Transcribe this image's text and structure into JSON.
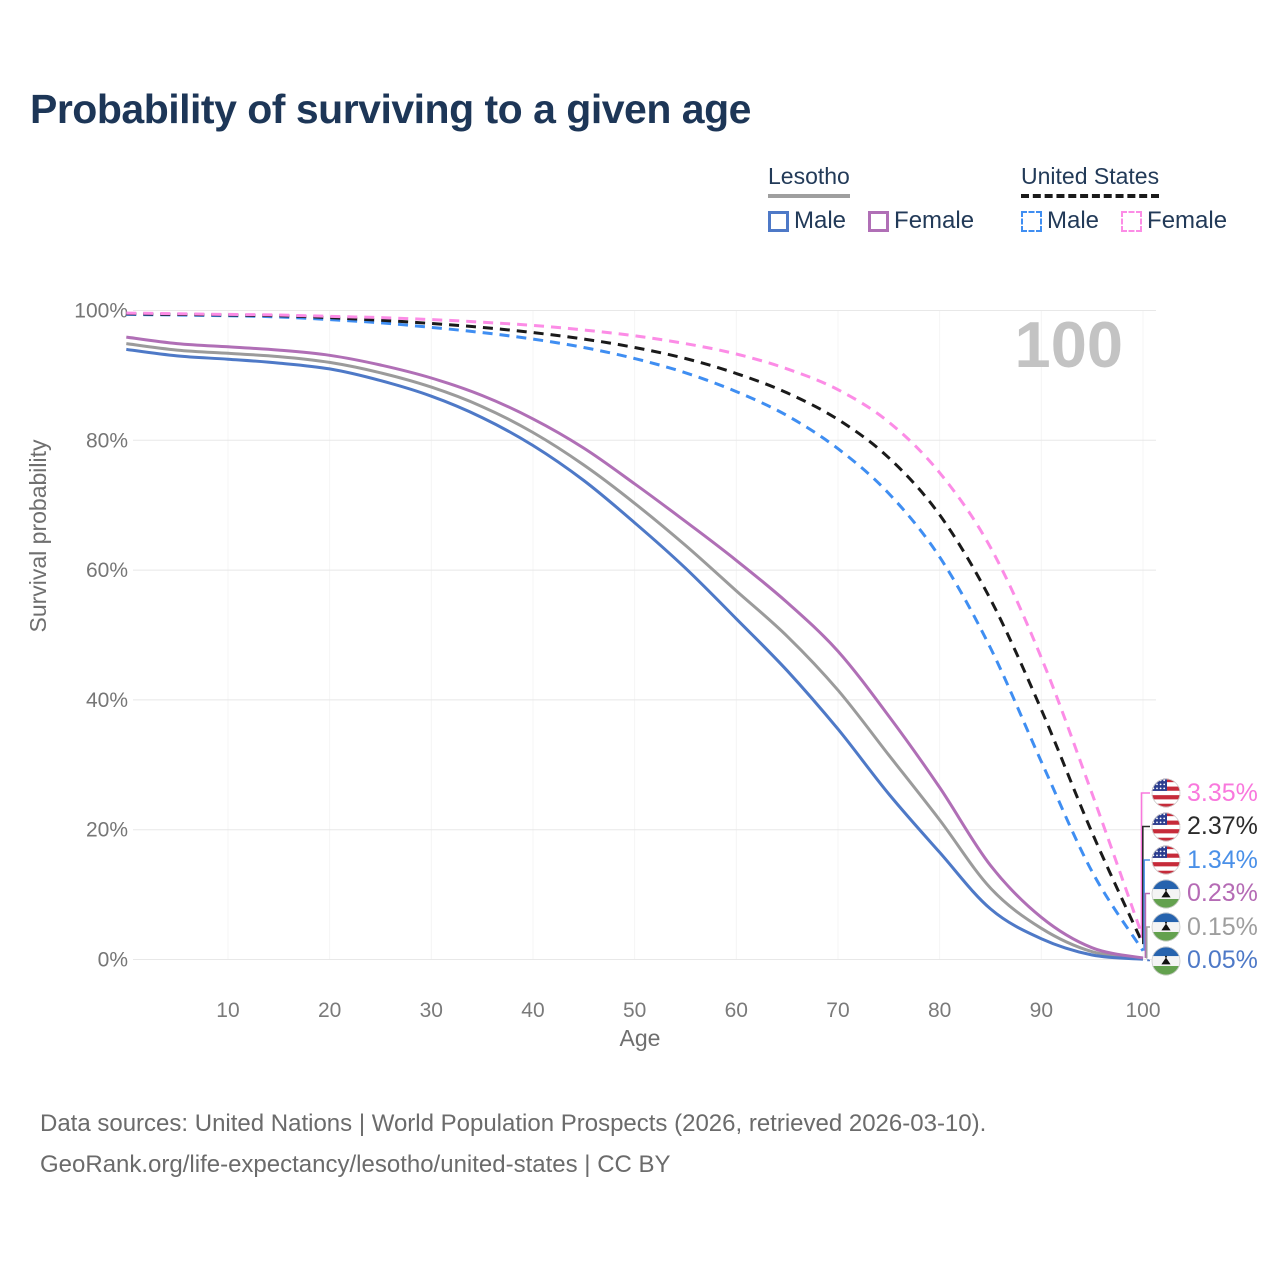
{
  "title": "Probability of surviving to a given age",
  "legend": {
    "groups": [
      {
        "title": "Lesotho",
        "line_style": "solid",
        "underline_color": "#9f9f9f",
        "items": [
          {
            "label": "Male",
            "color": "#4e79c7"
          },
          {
            "label": "Female",
            "color": "#b06fb6"
          }
        ]
      },
      {
        "title": "United States",
        "line_style": "dashed",
        "underline_color": "#1a1a1a",
        "items": [
          {
            "label": "Male",
            "color": "#3f8ef2"
          },
          {
            "label": "Female",
            "color": "#fc8ce6"
          }
        ]
      }
    ]
  },
  "chart_data": {
    "type": "line",
    "title": "Probability of surviving to a given age",
    "xlabel": "Age",
    "ylabel": "Survival probability",
    "xlim": [
      0,
      100
    ],
    "ylim": [
      0,
      100
    ],
    "grid": true,
    "legend_position": "top-right",
    "annotation": {
      "text": "100",
      "color": "#c3c3c3"
    },
    "x_ticks": [
      {
        "value": 10,
        "label": "10"
      },
      {
        "value": 20,
        "label": "20"
      },
      {
        "value": 30,
        "label": "30"
      },
      {
        "value": 40,
        "label": "40"
      },
      {
        "value": 50,
        "label": "50"
      },
      {
        "value": 60,
        "label": "60"
      },
      {
        "value": 70,
        "label": "70"
      },
      {
        "value": 80,
        "label": "80"
      },
      {
        "value": 90,
        "label": "90"
      },
      {
        "value": 100,
        "label": "100"
      }
    ],
    "y_ticks": [
      {
        "value": 0,
        "label": "0%"
      },
      {
        "value": 20,
        "label": "20%"
      },
      {
        "value": 40,
        "label": "40%"
      },
      {
        "value": 60,
        "label": "60%"
      },
      {
        "value": 80,
        "label": "80%"
      },
      {
        "value": 100,
        "label": "100%"
      }
    ],
    "x": [
      0,
      5,
      10,
      15,
      20,
      25,
      30,
      35,
      40,
      45,
      50,
      55,
      60,
      65,
      70,
      75,
      80,
      85,
      90,
      95,
      100
    ],
    "series": [
      {
        "name": "Lesotho Both sexes",
        "country": "Lesotho",
        "sex": "Both",
        "color": "#9b9b9b",
        "dashed": false,
        "values": [
          94.9,
          93.9,
          93.4,
          92.9,
          92.0,
          90.4,
          88.2,
          85.2,
          81.2,
          76.2,
          70.3,
          63.8,
          56.8,
          49.8,
          41.5,
          31.5,
          21.5,
          11.0,
          4.8,
          1.2,
          0.15
        ]
      },
      {
        "name": "Lesotho Male",
        "country": "Lesotho",
        "sex": "Male",
        "color": "#4e79c7",
        "dashed": false,
        "values": [
          94.0,
          93.0,
          92.5,
          91.9,
          91.0,
          89.2,
          86.8,
          83.5,
          79.2,
          73.8,
          67.3,
          60.3,
          52.5,
          44.5,
          35.5,
          25.5,
          16.5,
          7.8,
          3.2,
          0.7,
          0.05
        ]
      },
      {
        "name": "Lesotho Female",
        "country": "Lesotho",
        "sex": "Female",
        "color": "#b06fb6",
        "dashed": false,
        "values": [
          95.9,
          94.9,
          94.4,
          93.9,
          93.1,
          91.6,
          89.6,
          86.9,
          83.3,
          78.8,
          73.3,
          67.5,
          61.5,
          55.0,
          47.5,
          37.5,
          26.5,
          14.5,
          6.5,
          1.8,
          0.23
        ]
      },
      {
        "name": "United States Male",
        "country": "United States",
        "sex": "Male",
        "color": "#3f8ef2",
        "dashed": true,
        "values": [
          99.4,
          99.3,
          99.2,
          99.0,
          98.6,
          98.1,
          97.4,
          96.6,
          95.6,
          94.3,
          92.6,
          90.4,
          87.5,
          83.8,
          78.7,
          71.8,
          62.0,
          48.0,
          30.5,
          13.5,
          1.34
        ]
      },
      {
        "name": "United States Both sexes",
        "country": "United States",
        "sex": "Both",
        "color": "#1a1a1a",
        "dashed": true,
        "values": [
          99.5,
          99.4,
          99.3,
          99.2,
          98.9,
          98.5,
          98.0,
          97.4,
          96.6,
          95.6,
          94.3,
          92.6,
          90.3,
          87.3,
          83.2,
          77.3,
          68.5,
          55.5,
          38.5,
          19.5,
          2.37
        ]
      },
      {
        "name": "United States Female",
        "country": "United States",
        "sex": "Female",
        "color": "#fc8ce6",
        "dashed": true,
        "values": [
          99.6,
          99.5,
          99.4,
          99.3,
          99.1,
          98.9,
          98.6,
          98.2,
          97.7,
          97.0,
          96.1,
          94.9,
          93.3,
          91.0,
          87.8,
          82.8,
          75.0,
          63.5,
          46.5,
          25.5,
          3.35
        ]
      }
    ],
    "end_labels": [
      {
        "text": "3.35%",
        "value": 3.35,
        "color": "#f978dd",
        "flag": "us",
        "series": "United States Female"
      },
      {
        "text": "2.37%",
        "value": 2.37,
        "color": "#2b2b2b",
        "flag": "us",
        "series": "United States Both sexes"
      },
      {
        "text": "1.34%",
        "value": 1.34,
        "color": "#4a90e8",
        "flag": "us",
        "series": "United States Male"
      },
      {
        "text": "0.23%",
        "value": 0.23,
        "color": "#b56bb5",
        "flag": "lesotho",
        "series": "Lesotho Female"
      },
      {
        "text": "0.15%",
        "value": 0.15,
        "color": "#9e9e9e",
        "flag": "lesotho",
        "series": "Lesotho Both sexes"
      },
      {
        "text": "0.05%",
        "value": 0.05,
        "color": "#4e79c7",
        "flag": "lesotho",
        "series": "Lesotho Male"
      }
    ]
  },
  "footer": {
    "line1": "Data sources: United Nations | World Population Prospects (2026, retrieved 2026-03-10).",
    "line2": "GeoRank.org/life-expectancy/lesotho/united-states | CC BY"
  }
}
